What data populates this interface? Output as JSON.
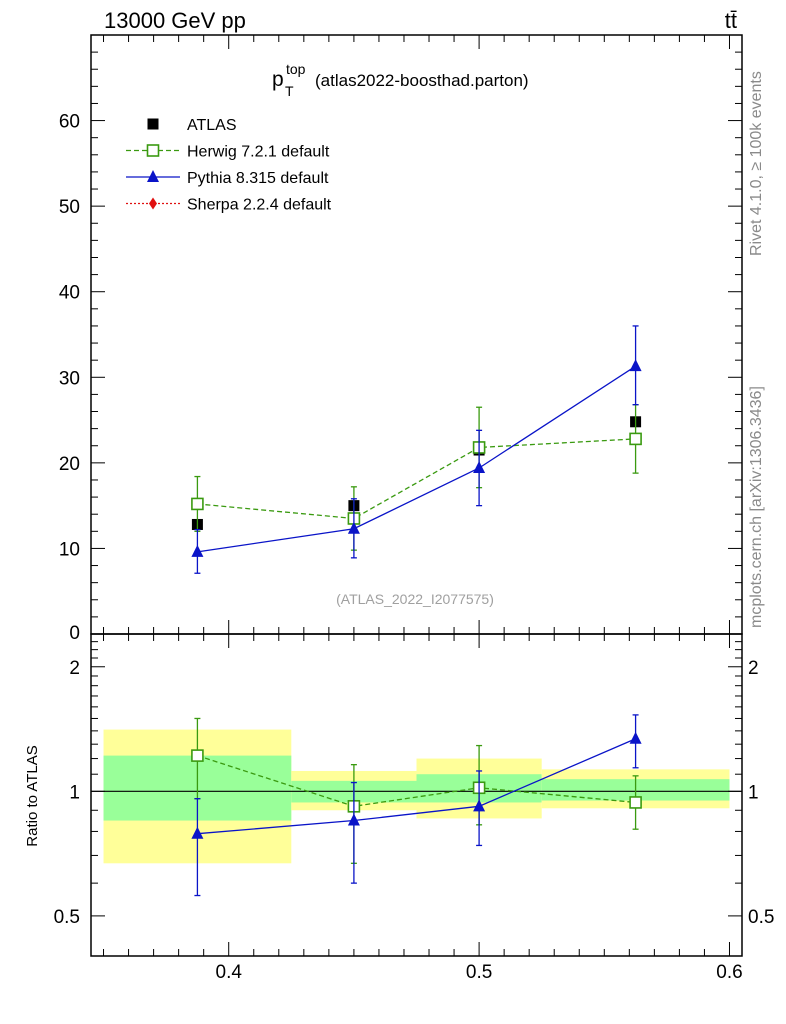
{
  "header": {
    "left": "13000 GeV pp",
    "right": "tt̄"
  },
  "side_labels": {
    "rivet": "Rivet 4.1.0, ≥ 100k events",
    "mcplots": "mcplots.cern.ch [arXiv:1306.3436]"
  },
  "chart_data": {
    "type": "scatter",
    "title_main": "p",
    "title_sub": "T",
    "title_sup": "top",
    "title_rest": "(atlas2022-boosthad.parton)",
    "watermark": "(ATLAS_2022_I2077575)",
    "ratio_ylabel": "Ratio to ATLAS",
    "x_range": [
      0.345,
      0.605
    ],
    "y_range": [
      0,
      70
    ],
    "ratio_range": [
      0.4,
      2.4
    ],
    "x_ticks": [
      "0.4",
      "0.5",
      "0.6"
    ],
    "x_tick_values": [
      0.4,
      0.5,
      0.6
    ],
    "y_ticks": [
      "10",
      "20",
      "30",
      "40",
      "50",
      "60"
    ],
    "y_tick_values": [
      10,
      20,
      30,
      40,
      50,
      60
    ],
    "y_zero_label": "0",
    "ratio_ticks": [
      "0.5",
      "1",
      "2"
    ],
    "ratio_tick_values": [
      0.5,
      1,
      2
    ],
    "bins": [
      {
        "lo": 0.35,
        "hi": 0.425,
        "x": 0.3875,
        "y": 12.8,
        "band_stat": [
          0.85,
          1.22
        ],
        "band_tot": [
          0.67,
          1.41
        ]
      },
      {
        "lo": 0.425,
        "hi": 0.475,
        "x": 0.45,
        "y": 15.0,
        "band_stat": [
          0.94,
          1.06
        ],
        "band_tot": [
          0.9,
          1.12
        ]
      },
      {
        "lo": 0.475,
        "hi": 0.525,
        "x": 0.5,
        "y": 21.5,
        "band_stat": [
          0.94,
          1.1
        ],
        "band_tot": [
          0.86,
          1.2
        ]
      },
      {
        "lo": 0.525,
        "hi": 0.6,
        "x": 0.5625,
        "y": 24.8,
        "band_stat": [
          0.95,
          1.07
        ],
        "band_tot": [
          0.91,
          1.13
        ]
      }
    ],
    "series": [
      {
        "name": "ATLAS",
        "color": "#000000",
        "marker": "square-filled",
        "line": "none",
        "x": [
          0.3875,
          0.45,
          0.5,
          0.5625
        ],
        "y": [
          12.8,
          15.0,
          21.5,
          24.8
        ]
      },
      {
        "name": "Herwig 7.2.1 default",
        "color": "#3a9a10",
        "marker": "square-open",
        "line": "dashed",
        "x": [
          0.3875,
          0.45,
          0.5,
          0.5625
        ],
        "y": [
          15.2,
          13.5,
          21.8,
          22.8
        ],
        "err_lo": [
          12.0,
          9.8,
          17.1,
          18.8
        ],
        "err_hi": [
          18.4,
          17.2,
          26.5,
          26.8
        ],
        "ratio": [
          1.22,
          0.92,
          1.02,
          0.94
        ],
        "ratio_lo": [
          0.96,
          0.67,
          0.83,
          0.81
        ],
        "ratio_hi": [
          1.5,
          1.16,
          1.29,
          1.09
        ]
      },
      {
        "name": "Pythia 8.315 default",
        "color": "#0a14c8",
        "marker": "triangle-filled",
        "line": "solid",
        "x": [
          0.3875,
          0.45,
          0.5,
          0.5625
        ],
        "y": [
          9.6,
          12.3,
          19.4,
          31.3
        ],
        "err_lo": [
          7.1,
          8.9,
          15.0,
          26.8
        ],
        "err_hi": [
          12.2,
          15.8,
          23.8,
          36.0
        ],
        "ratio": [
          0.79,
          0.85,
          0.92,
          1.34
        ],
        "ratio_lo": [
          0.56,
          0.6,
          0.74,
          1.14
        ],
        "ratio_hi": [
          0.96,
          1.05,
          1.12,
          1.53
        ]
      },
      {
        "name": "Sherpa 2.2.4 default",
        "color": "#e01010",
        "marker": "diamond-filled",
        "line": "dotted",
        "x": [],
        "y": []
      }
    ]
  }
}
